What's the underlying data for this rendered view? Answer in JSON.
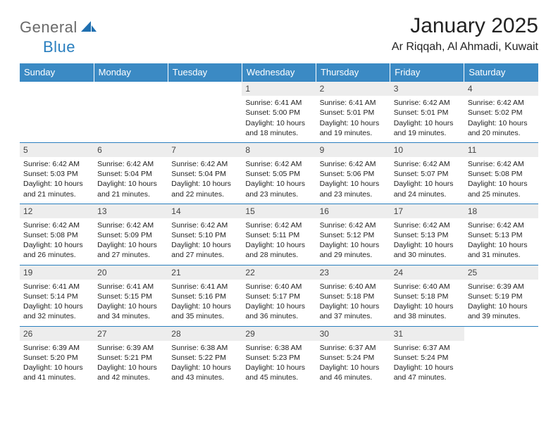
{
  "brand": {
    "part1": "General",
    "part2": "Blue"
  },
  "title": "January 2025",
  "location": "Ar Riqqah, Al Ahmadi, Kuwait",
  "weekdays": [
    "Sunday",
    "Monday",
    "Tuesday",
    "Wednesday",
    "Thursday",
    "Friday",
    "Saturday"
  ],
  "colors": {
    "header_bg": "#3b8ac4",
    "header_text": "#ffffff",
    "rule": "#2a7fbf",
    "daynum_bg": "#ededed",
    "logo_grey": "#6a6a6a",
    "logo_blue": "#2a7fbf"
  },
  "weeks": [
    [
      {
        "blank": true
      },
      {
        "blank": true
      },
      {
        "blank": true
      },
      {
        "day": "1",
        "sunrise": "6:41 AM",
        "sunset": "5:00 PM",
        "daylight": "10 hours and 18 minutes."
      },
      {
        "day": "2",
        "sunrise": "6:41 AM",
        "sunset": "5:01 PM",
        "daylight": "10 hours and 19 minutes."
      },
      {
        "day": "3",
        "sunrise": "6:42 AM",
        "sunset": "5:01 PM",
        "daylight": "10 hours and 19 minutes."
      },
      {
        "day": "4",
        "sunrise": "6:42 AM",
        "sunset": "5:02 PM",
        "daylight": "10 hours and 20 minutes."
      }
    ],
    [
      {
        "day": "5",
        "sunrise": "6:42 AM",
        "sunset": "5:03 PM",
        "daylight": "10 hours and 21 minutes."
      },
      {
        "day": "6",
        "sunrise": "6:42 AM",
        "sunset": "5:04 PM",
        "daylight": "10 hours and 21 minutes."
      },
      {
        "day": "7",
        "sunrise": "6:42 AM",
        "sunset": "5:04 PM",
        "daylight": "10 hours and 22 minutes."
      },
      {
        "day": "8",
        "sunrise": "6:42 AM",
        "sunset": "5:05 PM",
        "daylight": "10 hours and 23 minutes."
      },
      {
        "day": "9",
        "sunrise": "6:42 AM",
        "sunset": "5:06 PM",
        "daylight": "10 hours and 23 minutes."
      },
      {
        "day": "10",
        "sunrise": "6:42 AM",
        "sunset": "5:07 PM",
        "daylight": "10 hours and 24 minutes."
      },
      {
        "day": "11",
        "sunrise": "6:42 AM",
        "sunset": "5:08 PM",
        "daylight": "10 hours and 25 minutes."
      }
    ],
    [
      {
        "day": "12",
        "sunrise": "6:42 AM",
        "sunset": "5:08 PM",
        "daylight": "10 hours and 26 minutes."
      },
      {
        "day": "13",
        "sunrise": "6:42 AM",
        "sunset": "5:09 PM",
        "daylight": "10 hours and 27 minutes."
      },
      {
        "day": "14",
        "sunrise": "6:42 AM",
        "sunset": "5:10 PM",
        "daylight": "10 hours and 27 minutes."
      },
      {
        "day": "15",
        "sunrise": "6:42 AM",
        "sunset": "5:11 PM",
        "daylight": "10 hours and 28 minutes."
      },
      {
        "day": "16",
        "sunrise": "6:42 AM",
        "sunset": "5:12 PM",
        "daylight": "10 hours and 29 minutes."
      },
      {
        "day": "17",
        "sunrise": "6:42 AM",
        "sunset": "5:13 PM",
        "daylight": "10 hours and 30 minutes."
      },
      {
        "day": "18",
        "sunrise": "6:42 AM",
        "sunset": "5:13 PM",
        "daylight": "10 hours and 31 minutes."
      }
    ],
    [
      {
        "day": "19",
        "sunrise": "6:41 AM",
        "sunset": "5:14 PM",
        "daylight": "10 hours and 32 minutes."
      },
      {
        "day": "20",
        "sunrise": "6:41 AM",
        "sunset": "5:15 PM",
        "daylight": "10 hours and 34 minutes."
      },
      {
        "day": "21",
        "sunrise": "6:41 AM",
        "sunset": "5:16 PM",
        "daylight": "10 hours and 35 minutes."
      },
      {
        "day": "22",
        "sunrise": "6:40 AM",
        "sunset": "5:17 PM",
        "daylight": "10 hours and 36 minutes."
      },
      {
        "day": "23",
        "sunrise": "6:40 AM",
        "sunset": "5:18 PM",
        "daylight": "10 hours and 37 minutes."
      },
      {
        "day": "24",
        "sunrise": "6:40 AM",
        "sunset": "5:18 PM",
        "daylight": "10 hours and 38 minutes."
      },
      {
        "day": "25",
        "sunrise": "6:39 AM",
        "sunset": "5:19 PM",
        "daylight": "10 hours and 39 minutes."
      }
    ],
    [
      {
        "day": "26",
        "sunrise": "6:39 AM",
        "sunset": "5:20 PM",
        "daylight": "10 hours and 41 minutes."
      },
      {
        "day": "27",
        "sunrise": "6:39 AM",
        "sunset": "5:21 PM",
        "daylight": "10 hours and 42 minutes."
      },
      {
        "day": "28",
        "sunrise": "6:38 AM",
        "sunset": "5:22 PM",
        "daylight": "10 hours and 43 minutes."
      },
      {
        "day": "29",
        "sunrise": "6:38 AM",
        "sunset": "5:23 PM",
        "daylight": "10 hours and 45 minutes."
      },
      {
        "day": "30",
        "sunrise": "6:37 AM",
        "sunset": "5:24 PM",
        "daylight": "10 hours and 46 minutes."
      },
      {
        "day": "31",
        "sunrise": "6:37 AM",
        "sunset": "5:24 PM",
        "daylight": "10 hours and 47 minutes."
      },
      {
        "blank": true
      }
    ]
  ],
  "labels": {
    "sunrise_prefix": "Sunrise: ",
    "sunset_prefix": "Sunset: ",
    "daylight_prefix": "Daylight: "
  }
}
